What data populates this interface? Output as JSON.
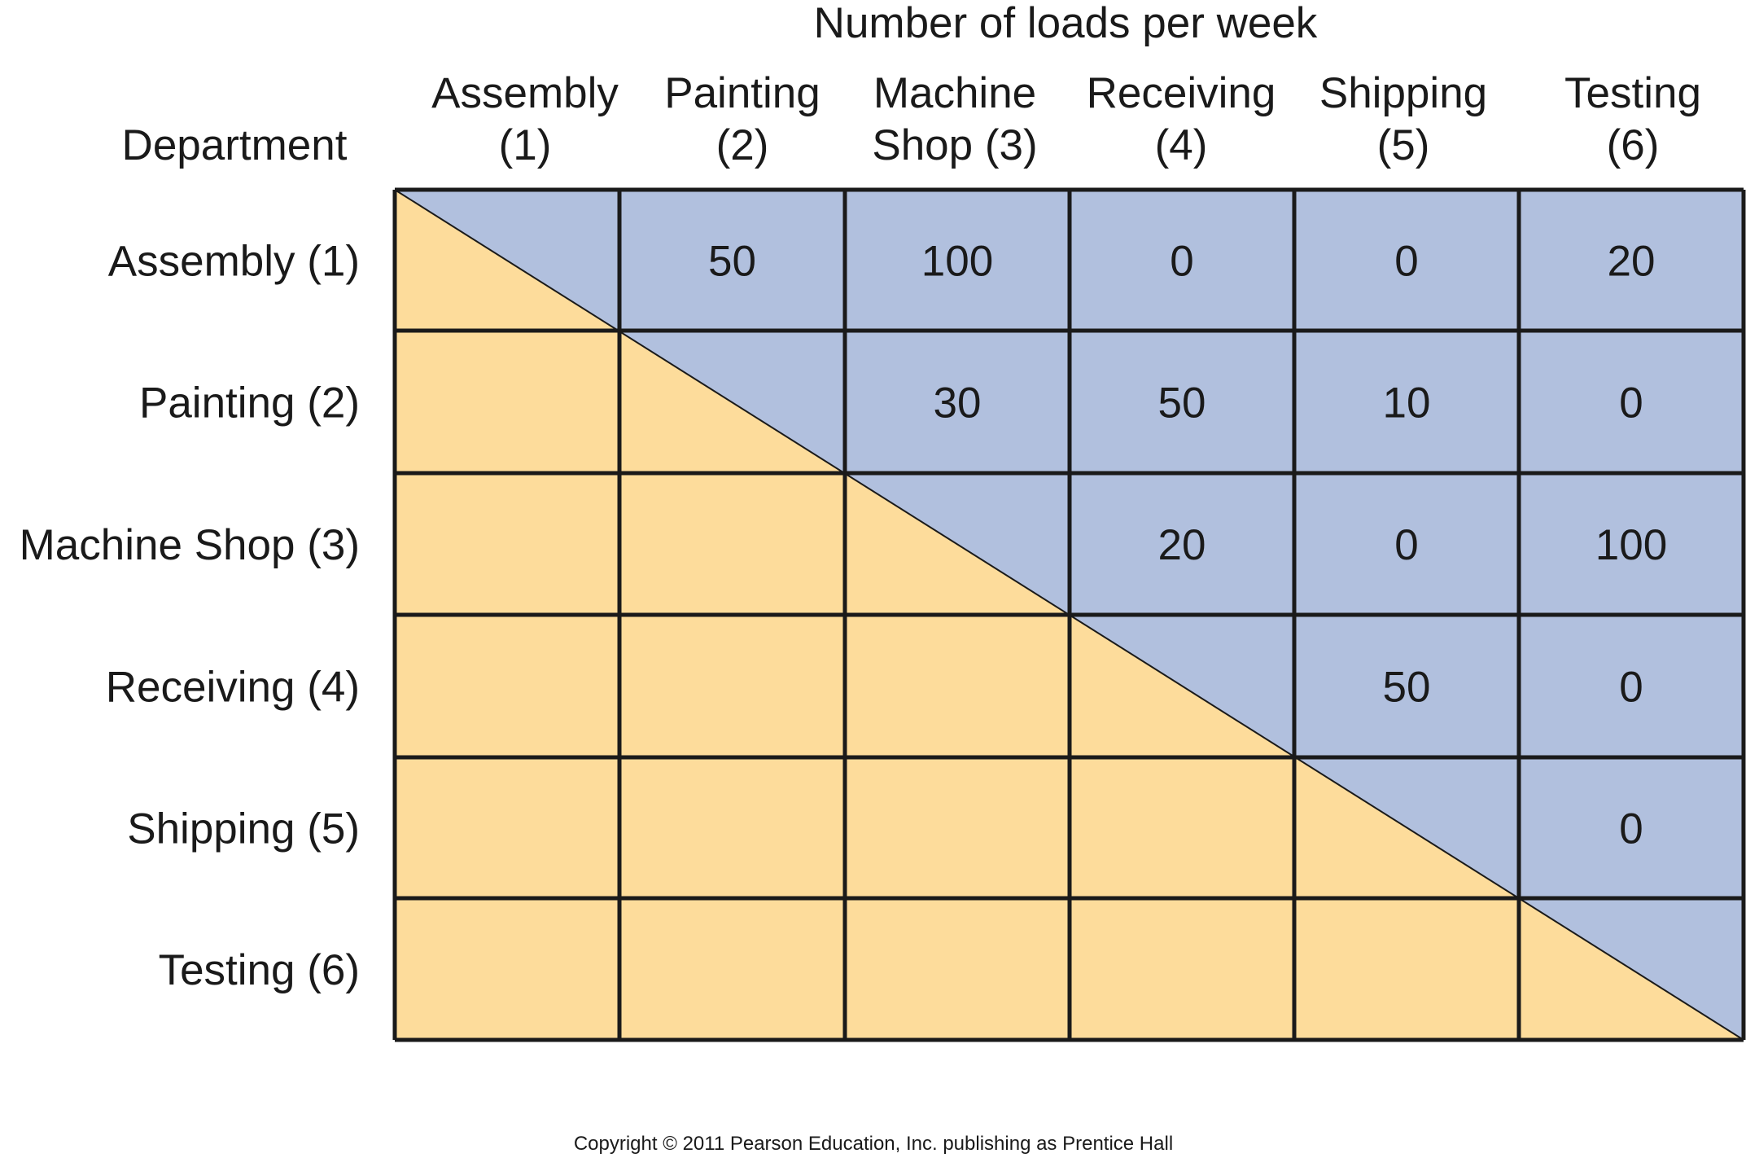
{
  "title": "Number of loads per week",
  "row_header_label": "Department",
  "columns": [
    {
      "line1": "Assembly",
      "line2": "(1)"
    },
    {
      "line1": "Painting",
      "line2": "(2)"
    },
    {
      "line1": "Machine",
      "line2": "Shop (3)"
    },
    {
      "line1": "Receiving",
      "line2": "(4)"
    },
    {
      "line1": "Shipping",
      "line2": "(5)"
    },
    {
      "line1": "Testing",
      "line2": "(6)"
    }
  ],
  "rows": [
    {
      "label": "Assembly (1)",
      "values": [
        "",
        "50",
        "100",
        "0",
        "0",
        "20"
      ]
    },
    {
      "label": "Painting (2)",
      "values": [
        "",
        "",
        "30",
        "50",
        "10",
        "0"
      ]
    },
    {
      "label": "Machine Shop (3)",
      "values": [
        "",
        "",
        "",
        "20",
        "0",
        "100"
      ]
    },
    {
      "label": "Receiving (4)",
      "values": [
        "",
        "",
        "",
        "",
        "50",
        "0"
      ]
    },
    {
      "label": "Shipping (5)",
      "values": [
        "",
        "",
        "",
        "",
        "",
        "0"
      ]
    },
    {
      "label": "Testing (6)",
      "values": [
        "",
        "",
        "",
        "",
        "",
        ""
      ]
    }
  ],
  "copyright": "Copyright © 2011 Pearson Education, Inc. publishing as Prentice Hall",
  "colors": {
    "upper_fill": "#b1c0de",
    "lower_fill": "#fddc9b",
    "grid_line": "#1a1a1a",
    "text": "#1a1a1a"
  }
}
